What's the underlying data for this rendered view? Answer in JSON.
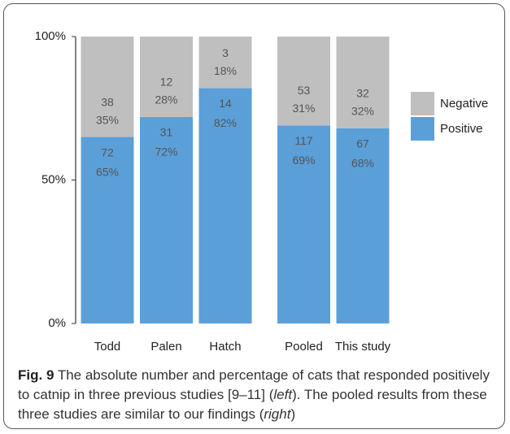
{
  "chart_data": {
    "type": "stacked_bar",
    "categories": [
      "Todd",
      "Palen",
      "Hatch",
      "Pooled",
      "This study"
    ],
    "series": [
      {
        "name": "Positive",
        "color": "#5b9fd8",
        "values": [
          65,
          72,
          82,
          69,
          68
        ],
        "value_labels": [
          "65%",
          "72%",
          "82%",
          "69%",
          "68%"
        ],
        "counts": [
          72,
          31,
          14,
          117,
          67
        ]
      },
      {
        "name": "Negative",
        "color": "#bfbfbf",
        "values": [
          35,
          28,
          18,
          31,
          32
        ],
        "value_labels": [
          "35%",
          "28%",
          "18%",
          "31%",
          "32%"
        ],
        "counts": [
          38,
          12,
          3,
          53,
          32
        ]
      }
    ],
    "ylim": [
      0,
      100
    ],
    "yticks": [
      {
        "value": 0,
        "label": "0%"
      },
      {
        "value": 50,
        "label": "50%"
      },
      {
        "value": 100,
        "label": "100%"
      }
    ],
    "legend": "right"
  },
  "caption": {
    "label": "Fig. 9",
    "parts": [
      "The absolute number and percentage of cats that responded positively to catnip in three previous studies [9–11] (",
      "left",
      "). The pooled results from these three studies are similar to our findings (",
      "right",
      ")"
    ]
  }
}
